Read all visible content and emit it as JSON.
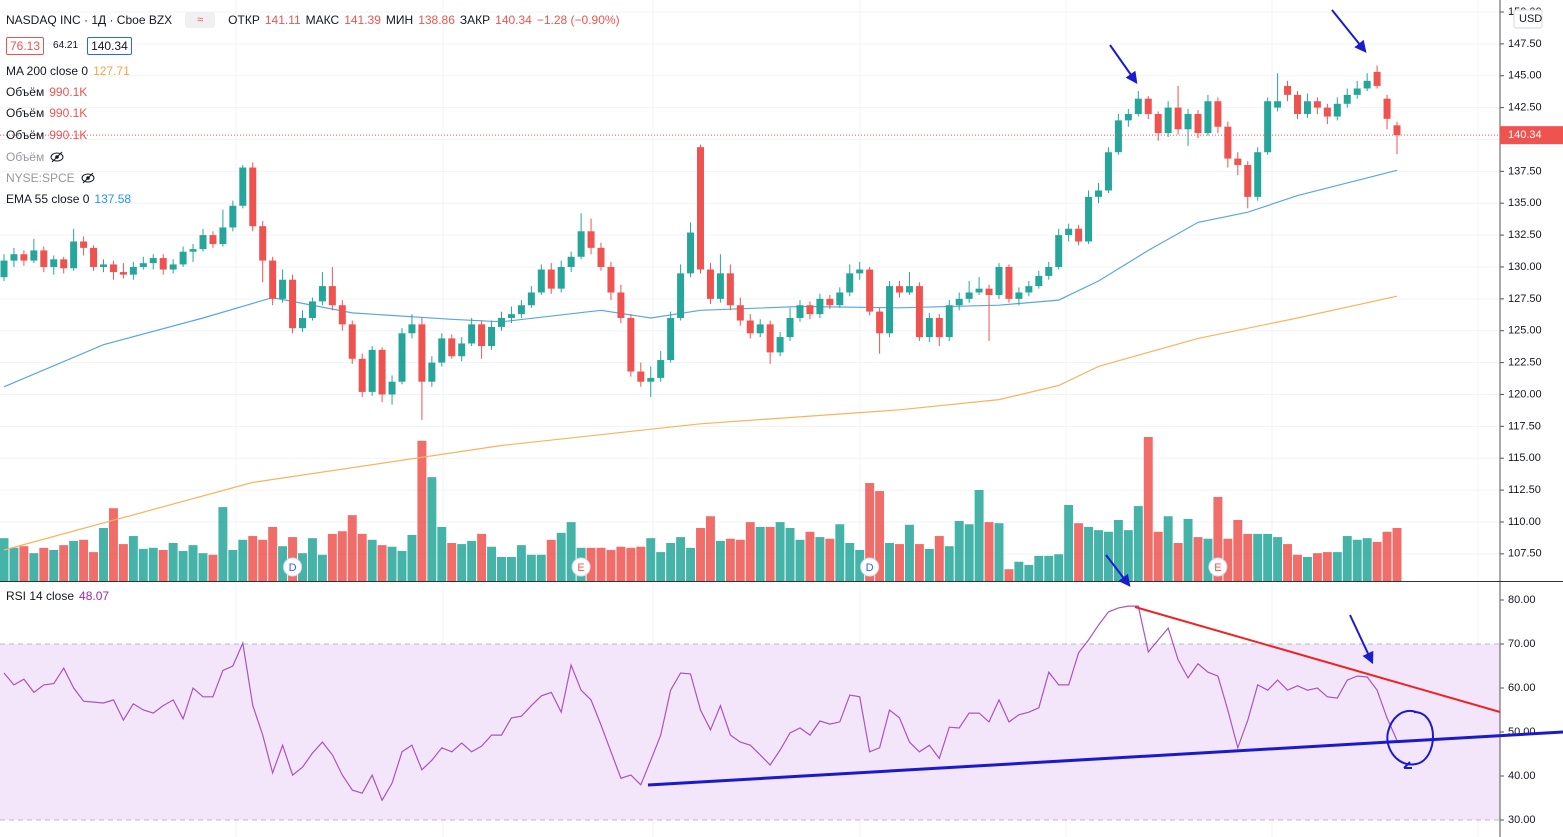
{
  "chart_data": {
    "type": "candlestick",
    "title": "NASDAQ INC · 1Д · Cboe BZX",
    "ohlc_labels": [
      "ОТКР",
      "МАКС",
      "МИН",
      "ЗАКР"
    ],
    "change": "−1.28 (−0.90%)",
    "quotes": [
      76.13,
      64.21
    ],
    "currency": "USD",
    "up_color": "#26a69a",
    "down_color": "#ef5350",
    "ylim": [
      105.37,
      150.94
    ],
    "yticks": [
      {
        "value": 150,
        "label": "150.00"
      },
      {
        "value": 147.5,
        "label": "147.50"
      },
      {
        "value": 145,
        "label": "145.00"
      },
      {
        "value": 142.5,
        "label": "142.50"
      },
      {
        "value": 140,
        "label": "140.00"
      },
      {
        "value": 137.5,
        "label": "137.50"
      },
      {
        "value": 135,
        "label": "135.00"
      },
      {
        "value": 132.5,
        "label": "132.50"
      },
      {
        "value": 130,
        "label": "130.00"
      },
      {
        "value": 127.5,
        "label": "127.50"
      },
      {
        "value": 125,
        "label": "125.00"
      },
      {
        "value": 122.5,
        "label": "122.50"
      },
      {
        "value": 120,
        "label": "120.00"
      },
      {
        "value": 117.5,
        "label": "117.50"
      },
      {
        "value": 115,
        "label": "115.00"
      },
      {
        "value": 112.5,
        "label": "112.50"
      },
      {
        "value": 110,
        "label": "110.00"
      },
      {
        "value": 107.5,
        "label": "107.50"
      }
    ],
    "candles": [
      [
        129.2,
        131.0,
        128.9,
        130.5
      ],
      [
        130.5,
        131.5,
        130.0,
        131.0
      ],
      [
        131.0,
        131.3,
        130.1,
        130.5
      ],
      [
        130.5,
        132.2,
        130.3,
        131.3
      ],
      [
        131.3,
        131.6,
        129.6,
        130.0
      ],
      [
        130.0,
        130.9,
        129.4,
        130.6
      ],
      [
        130.6,
        130.8,
        129.5,
        129.9
      ],
      [
        129.9,
        133.0,
        129.7,
        132.0
      ],
      [
        132.0,
        132.4,
        130.9,
        131.5
      ],
      [
        131.5,
        131.7,
        129.7,
        130.0
      ],
      [
        130.0,
        130.6,
        129.6,
        130.2
      ],
      [
        130.2,
        130.5,
        129.0,
        129.6
      ],
      [
        129.6,
        130.3,
        129.1,
        129.4
      ],
      [
        129.4,
        130.4,
        129.0,
        130.0
      ],
      [
        130.0,
        130.8,
        129.8,
        130.3
      ],
      [
        130.3,
        131.0,
        129.8,
        130.7
      ],
      [
        130.7,
        131.0,
        129.4,
        129.8
      ],
      [
        129.8,
        130.6,
        129.5,
        130.2
      ],
      [
        130.2,
        131.6,
        130.0,
        131.2
      ],
      [
        131.2,
        131.8,
        130.4,
        131.4
      ],
      [
        131.4,
        133.0,
        131.2,
        132.5
      ],
      [
        132.5,
        132.8,
        131.5,
        131.8
      ],
      [
        131.8,
        134.5,
        131.6,
        133.1
      ],
      [
        133.1,
        135.2,
        132.8,
        134.8
      ],
      [
        134.8,
        138.0,
        134.6,
        137.8
      ],
      [
        137.8,
        138.2,
        132.8,
        133.2
      ],
      [
        133.2,
        133.6,
        128.8,
        130.5
      ],
      [
        130.5,
        130.8,
        127.0,
        127.5
      ],
      [
        127.5,
        129.8,
        127.2,
        129.0
      ],
      [
        129.0,
        129.4,
        124.8,
        125.2
      ],
      [
        125.2,
        126.6,
        124.9,
        126.0
      ],
      [
        126.0,
        127.6,
        125.8,
        127.3
      ],
      [
        127.3,
        129.6,
        127.0,
        128.5
      ],
      [
        128.5,
        130.0,
        126.6,
        127.0
      ],
      [
        127.0,
        127.4,
        125.0,
        125.5
      ],
      [
        125.5,
        125.8,
        122.4,
        122.8
      ],
      [
        122.8,
        123.2,
        119.8,
        120.2
      ],
      [
        120.2,
        123.8,
        119.9,
        123.5
      ],
      [
        123.5,
        123.7,
        119.4,
        120.0
      ],
      [
        120.0,
        121.5,
        119.2,
        121.0
      ],
      [
        121.0,
        125.2,
        120.8,
        124.8
      ],
      [
        124.8,
        126.3,
        124.4,
        125.5
      ],
      [
        125.5,
        126.0,
        118.0,
        121.0
      ],
      [
        121.0,
        123.0,
        120.6,
        122.5
      ],
      [
        122.5,
        124.8,
        122.2,
        124.4
      ],
      [
        124.4,
        124.7,
        122.8,
        123.0
      ],
      [
        123.0,
        124.5,
        122.6,
        124.0
      ],
      [
        124.0,
        126.0,
        123.8,
        125.5
      ],
      [
        125.5,
        125.8,
        122.8,
        123.8
      ],
      [
        123.8,
        125.8,
        123.5,
        125.3
      ],
      [
        125.3,
        126.5,
        125.0,
        126.0
      ],
      [
        126.0,
        126.9,
        125.6,
        126.3
      ],
      [
        126.3,
        127.4,
        126.0,
        127.0
      ],
      [
        127.0,
        128.5,
        126.8,
        128.0
      ],
      [
        128.0,
        130.2,
        127.8,
        129.8
      ],
      [
        129.8,
        130.3,
        127.9,
        128.3
      ],
      [
        128.3,
        130.5,
        128.0,
        130.0
      ],
      [
        130.0,
        131.2,
        129.6,
        130.8
      ],
      [
        130.8,
        134.2,
        130.6,
        132.8
      ],
      [
        132.8,
        133.8,
        131.0,
        131.5
      ],
      [
        131.5,
        131.9,
        129.7,
        130.0
      ],
      [
        130.0,
        130.4,
        127.4,
        128.0
      ],
      [
        128.0,
        128.6,
        125.6,
        126.0
      ],
      [
        126.0,
        126.3,
        121.4,
        121.8
      ],
      [
        121.8,
        122.5,
        120.6,
        121.0
      ],
      [
        121.0,
        122.2,
        119.8,
        121.3
      ],
      [
        121.3,
        123.4,
        121.0,
        122.7
      ],
      [
        122.7,
        126.5,
        122.5,
        126.0
      ],
      [
        126.0,
        130.2,
        125.8,
        129.5
      ],
      [
        129.5,
        133.5,
        129.2,
        132.7
      ],
      [
        139.4,
        139.6,
        129.5,
        129.8
      ],
      [
        129.8,
        130.3,
        127.1,
        127.5
      ],
      [
        127.5,
        131.0,
        127.2,
        129.5
      ],
      [
        129.5,
        130.2,
        126.6,
        127.0
      ],
      [
        127.0,
        127.6,
        125.4,
        125.8
      ],
      [
        125.8,
        126.3,
        124.4,
        124.8
      ],
      [
        124.8,
        125.9,
        124.5,
        125.5
      ],
      [
        125.5,
        125.8,
        122.4,
        123.3
      ],
      [
        123.3,
        124.9,
        123.0,
        124.5
      ],
      [
        124.5,
        126.8,
        124.2,
        126.0
      ],
      [
        126.0,
        127.4,
        125.7,
        127.0
      ],
      [
        127.0,
        127.3,
        125.9,
        126.3
      ],
      [
        126.3,
        127.9,
        126.0,
        127.5
      ],
      [
        127.5,
        127.8,
        126.7,
        127.0
      ],
      [
        127.0,
        128.4,
        126.8,
        128.0
      ],
      [
        128.0,
        130.2,
        127.7,
        129.5
      ],
      [
        129.5,
        130.4,
        129.0,
        129.8
      ],
      [
        129.8,
        130.0,
        126.2,
        126.5
      ],
      [
        126.5,
        126.8,
        123.2,
        124.8
      ],
      [
        124.8,
        128.9,
        124.5,
        128.5
      ],
      [
        128.5,
        128.9,
        127.6,
        128.0
      ],
      [
        128.0,
        129.6,
        127.8,
        128.5
      ],
      [
        128.5,
        128.8,
        124.2,
        124.5
      ],
      [
        124.5,
        126.4,
        124.1,
        126.0
      ],
      [
        126.0,
        126.3,
        123.8,
        124.5
      ],
      [
        124.5,
        127.4,
        124.2,
        127.0
      ],
      [
        127.0,
        128.0,
        126.6,
        127.5
      ],
      [
        127.5,
        128.9,
        127.2,
        128.0
      ],
      [
        128.0,
        129.2,
        127.8,
        128.3
      ],
      [
        128.3,
        128.6,
        124.2,
        127.8
      ],
      [
        127.8,
        130.3,
        127.5,
        130.0
      ],
      [
        130.0,
        130.2,
        127.2,
        127.5
      ],
      [
        127.5,
        128.4,
        127.0,
        128.0
      ],
      [
        128.0,
        128.9,
        127.7,
        128.5
      ],
      [
        128.5,
        129.7,
        128.3,
        129.3
      ],
      [
        129.3,
        130.4,
        129.0,
        130.0
      ],
      [
        130.0,
        133.0,
        129.8,
        132.5
      ],
      [
        132.5,
        133.4,
        132.0,
        133.0
      ],
      [
        133.0,
        133.3,
        131.7,
        132.0
      ],
      [
        132.0,
        136.0,
        131.8,
        135.5
      ],
      [
        135.5,
        136.6,
        135.0,
        136.0
      ],
      [
        136.0,
        139.4,
        135.8,
        139.0
      ],
      [
        139.0,
        142.0,
        138.8,
        141.5
      ],
      [
        141.5,
        142.4,
        141.0,
        142.0
      ],
      [
        142.0,
        143.8,
        141.8,
        143.2
      ],
      [
        143.2,
        143.4,
        141.6,
        142.0
      ],
      [
        142.0,
        142.2,
        139.9,
        140.5
      ],
      [
        140.5,
        143.0,
        140.2,
        142.5
      ],
      [
        142.5,
        144.2,
        140.4,
        140.8
      ],
      [
        140.8,
        142.4,
        139.5,
        142.0
      ],
      [
        142.0,
        142.3,
        140.1,
        140.5
      ],
      [
        140.5,
        143.5,
        140.3,
        143.0
      ],
      [
        143.0,
        143.3,
        140.5,
        141.0
      ],
      [
        141.0,
        141.4,
        137.8,
        138.5
      ],
      [
        138.5,
        139.0,
        137.2,
        138.0
      ],
      [
        138.0,
        138.3,
        134.6,
        135.5
      ],
      [
        135.5,
        139.4,
        135.2,
        139.0
      ],
      [
        139.0,
        143.3,
        138.8,
        143.0
      ],
      [
        142.5,
        145.2,
        142.2,
        143.0
      ],
      [
        144.2,
        144.6,
        143.0,
        143.5
      ],
      [
        143.5,
        143.8,
        141.6,
        142.0
      ],
      [
        142.0,
        143.6,
        141.7,
        143.0
      ],
      [
        143.0,
        143.3,
        142.0,
        142.5
      ],
      [
        142.5,
        142.8,
        141.2,
        141.8
      ],
      [
        141.8,
        143.3,
        141.5,
        142.8
      ],
      [
        142.8,
        144.0,
        142.5,
        143.5
      ],
      [
        143.5,
        144.6,
        143.2,
        144.0
      ],
      [
        144.0,
        145.2,
        143.8,
        144.6
      ],
      [
        145.3,
        145.8,
        144.0,
        144.2
      ],
      [
        143.2,
        143.5,
        140.8,
        141.62
      ],
      [
        141.11,
        141.39,
        138.86,
        140.34
      ]
    ],
    "volume_legends": [
      {
        "name": "Объём",
        "value_label": "990.1K"
      },
      {
        "name": "Объём",
        "value_label": "990.1K"
      },
      {
        "name": "Объём",
        "value_label": "990.1K"
      }
    ],
    "hidden_legends": [
      "Объём",
      "NYSE:SPCE"
    ],
    "volume": {
      "values": [
        800,
        620,
        650,
        520,
        620,
        580,
        670,
        750,
        770,
        540,
        990,
        1360,
        690,
        840,
        600,
        620,
        580,
        710,
        560,
        670,
        520,
        490,
        1380,
        580,
        770,
        840,
        770,
        1010,
        650,
        820,
        520,
        800,
        490,
        880,
        930,
        1230,
        880,
        770,
        670,
        640,
        560,
        860,
        2620,
        1940,
        1010,
        710,
        690,
        750,
        880,
        640,
        450,
        450,
        670,
        490,
        490,
        770,
        900,
        1100,
        620,
        620,
        620,
        580,
        640,
        620,
        640,
        800,
        540,
        710,
        820,
        620,
        990,
        1210,
        750,
        790,
        770,
        1100,
        1010,
        1010,
        1100,
        990,
        770,
        920,
        820,
        790,
        1060,
        710,
        580,
        1830,
        1680,
        710,
        690,
        1050,
        690,
        600,
        840,
        650,
        1120,
        1060,
        1700,
        1100,
        1080,
        220,
        360,
        300,
        470,
        470,
        500,
        1420,
        1080,
        1010,
        950,
        920,
        1140,
        950,
        1400,
        2690,
        920,
        1210,
        710,
        1160,
        820,
        790,
        1570,
        790,
        1140,
        880,
        880,
        880,
        820,
        690,
        490,
        450,
        520,
        540,
        540,
        840,
        770,
        800,
        730,
        920,
        990.1
      ]
    },
    "ma200": {
      "name": "MA 200 close 0",
      "color": "#f7b45e",
      "x": [
        0,
        25,
        50,
        70,
        90,
        100,
        106,
        110,
        120,
        130,
        140
      ],
      "values": [
        107.8,
        113.1,
        116.0,
        117.7,
        118.8,
        119.6,
        120.7,
        122.2,
        124.4,
        126.0,
        127.71
      ]
    },
    "ema55": {
      "name": "EMA 55 close 0",
      "color": "#5aa7e0",
      "x": [
        0,
        10,
        20,
        27,
        35,
        45,
        50,
        60,
        65,
        70,
        80,
        90,
        100,
        106,
        110,
        115,
        120,
        125,
        130,
        140
      ],
      "values": [
        120.6,
        123.9,
        126.0,
        127.6,
        126.4,
        125.9,
        125.7,
        126.6,
        126.0,
        126.6,
        126.9,
        126.8,
        127.0,
        127.4,
        128.9,
        131.3,
        133.5,
        134.3,
        135.6,
        137.58
      ]
    },
    "events": [
      {
        "label": "D",
        "candle": 29,
        "color": "#2962ff"
      },
      {
        "label": "E",
        "candle": 58,
        "color": "#ef5350"
      },
      {
        "label": "D",
        "candle": 87,
        "color": "#2962ff"
      },
      {
        "label": "E",
        "candle": 122,
        "color": "#ef5350"
      }
    ],
    "rsi": {
      "name": "RSI 14 close",
      "color": "#a855c0",
      "band": [
        30,
        70
      ],
      "ylim": [
        26.14,
        83.86
      ],
      "yticks": [
        {
          "value": 80,
          "label": "80.00"
        },
        {
          "value": 70,
          "label": "70.00"
        },
        {
          "value": 60,
          "label": "60.00"
        },
        {
          "value": 50,
          "label": "50.00"
        },
        {
          "value": 40,
          "label": "40.00"
        },
        {
          "value": 30,
          "label": "30.00"
        }
      ],
      "values": [
        63.4,
        60.7,
        62,
        59,
        60.7,
        61,
        64.5,
        60,
        57,
        56.8,
        56.6,
        57.3,
        52.7,
        56.4,
        55,
        54.3,
        56,
        57.3,
        53,
        60,
        58,
        58,
        64,
        65,
        70.2,
        56,
        49.3,
        40.7,
        47,
        40.2,
        42,
        45.2,
        47.7,
        44.8,
        40.2,
        36.8,
        36.1,
        40.2,
        34.5,
        38.4,
        45.5,
        47,
        41.4,
        43.6,
        46.4,
        45.5,
        47.5,
        45.5,
        46.8,
        49.3,
        49.3,
        53.2,
        53.6,
        56,
        58.2,
        59,
        54.5,
        65.2,
        59.5,
        57.3,
        51.6,
        45.5,
        39.5,
        40.2,
        38,
        43.6,
        49.3,
        59.5,
        63.4,
        63.2,
        55,
        50.5,
        56,
        49.3,
        47.7,
        47,
        44.8,
        42.5,
        45.9,
        49.8,
        50.9,
        49.3,
        52.5,
        51.8,
        52.3,
        58.4,
        58,
        45.5,
        46.4,
        55,
        53.2,
        47.7,
        45.5,
        47,
        44,
        51.1,
        50.9,
        54.3,
        54.3,
        52.3,
        57.3,
        52.3,
        53.9,
        54.5,
        55.5,
        63.6,
        60.7,
        60.7,
        68,
        70.9,
        74.3,
        77.3,
        78.2,
        78.6,
        78.6,
        68.2,
        70.9,
        73.6,
        66.4,
        62.3,
        65.5,
        63.6,
        62.7,
        55,
        46.4,
        52.7,
        60.7,
        59.5,
        61.8,
        59.5,
        60.5,
        59.5,
        60,
        58,
        57.7,
        61.8,
        62.7,
        62.5,
        59.5,
        53.2,
        48.07
      ]
    }
  }
}
